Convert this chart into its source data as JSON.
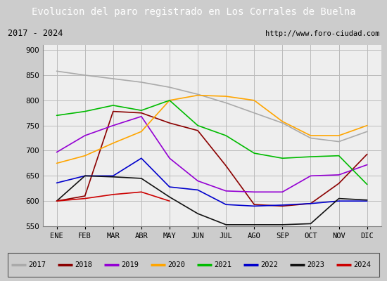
{
  "title": "Evolucion del paro registrado en Los Corrales de Buelna",
  "subtitle_left": "2017 - 2024",
  "subtitle_right": "http://www.foro-ciudad.com",
  "x_labels": [
    "ENE",
    "FEB",
    "MAR",
    "ABR",
    "MAY",
    "JUN",
    "JUL",
    "AGO",
    "SEP",
    "OCT",
    "NOV",
    "DIC"
  ],
  "ylim": [
    550,
    910
  ],
  "yticks": [
    900,
    850,
    800,
    750,
    700,
    650,
    600,
    550
  ],
  "title_bg": "#4a6fa5",
  "title_color": "white",
  "title_fontsize": 10,
  "sub_bg": "white",
  "plot_bg": "#eeeeee",
  "fig_bg": "#cccccc",
  "legend_bg": "white",
  "grid_color": "#bbbbbb",
  "series": [
    {
      "year": "2017",
      "color": "#aaaaaa",
      "y": [
        858,
        850,
        843,
        836,
        826,
        812,
        795,
        775,
        755,
        725,
        718,
        738
      ]
    },
    {
      "year": "2018",
      "color": "#8b0000",
      "y": [
        600,
        610,
        778,
        775,
        755,
        740,
        670,
        593,
        590,
        595,
        635,
        693
      ]
    },
    {
      "year": "2019",
      "color": "#9400d3",
      "y": [
        697,
        730,
        750,
        768,
        685,
        640,
        620,
        618,
        618,
        650,
        652,
        672
      ]
    },
    {
      "year": "2020",
      "color": "#ffa500",
      "y": [
        675,
        690,
        715,
        738,
        800,
        810,
        808,
        800,
        758,
        730,
        730,
        750
      ]
    },
    {
      "year": "2021",
      "color": "#00bb00",
      "y": [
        770,
        778,
        790,
        780,
        800,
        750,
        730,
        695,
        685,
        688,
        690,
        633
      ]
    },
    {
      "year": "2022",
      "color": "#0000cc",
      "y": [
        636,
        650,
        650,
        685,
        628,
        622,
        593,
        590,
        592,
        595,
        600,
        600
      ]
    },
    {
      "year": "2023",
      "color": "#111111",
      "y": [
        600,
        650,
        648,
        645,
        608,
        575,
        553,
        553,
        553,
        555,
        605,
        602
      ]
    },
    {
      "year": "2024",
      "color": "#cc0000",
      "y": [
        600,
        605,
        613,
        618,
        600,
        null,
        null,
        null,
        null,
        null,
        null,
        null
      ]
    }
  ]
}
